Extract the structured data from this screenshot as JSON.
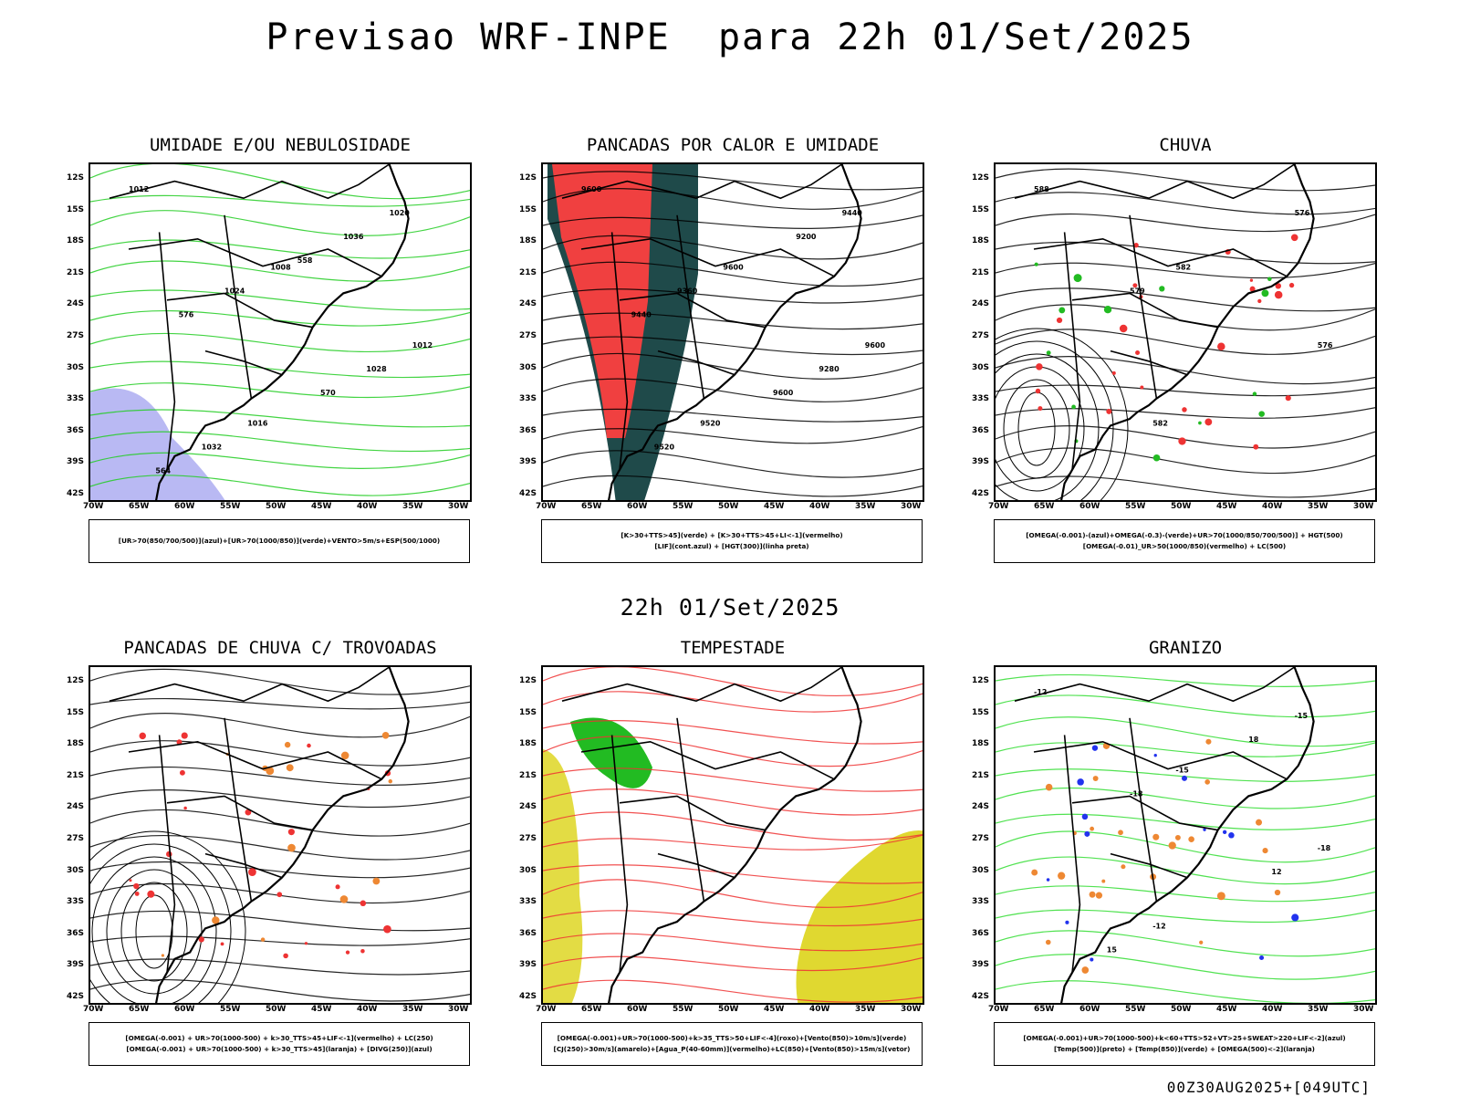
{
  "main_title": "Previsao WRF-INPE  para 22h 01/Set/2025",
  "mid_date": "22h 01/Set/2025",
  "footer": "00Z30AUG2025+[049UTC]",
  "axes": {
    "lat_labels": [
      "12S",
      "15S",
      "18S",
      "21S",
      "24S",
      "27S",
      "30S",
      "33S",
      "36S",
      "39S",
      "42S"
    ],
    "lon_labels": [
      "70W",
      "65W",
      "60W",
      "55W",
      "50W",
      "45W",
      "40W",
      "35W",
      "30W"
    ]
  },
  "panels": [
    {
      "title": "UMIDADE E/OU NEBULOSIDADE",
      "legend": [
        "[UR>70(850/700/500)](azul)+[UR>70(1000/850)](verde)+VENTO>5m/s+ESP(500/1000)"
      ],
      "contour_labels": [
        "1012",
        "1008",
        "1012",
        "1016",
        "1020",
        "1024",
        "1028",
        "1032",
        "1036",
        "576",
        "570",
        "564",
        "558"
      ],
      "colors": {
        "fill1": "#a8a8f0",
        "line1": "#22cc22",
        "line2": "#ee3333"
      }
    },
    {
      "title": "PANCADAS POR CALOR E UMIDADE",
      "legend": [
        "[K>30+TTS>45](verde) + [K>30+TTS>45+LI<-1](vermelho)",
        "[LIF](cont.azul) + [HGT(300)](linha preta)"
      ],
      "contour_labels": [
        "9600",
        "9600",
        "9600",
        "9520",
        "9440",
        "9360",
        "9280",
        "9520",
        "9200",
        "9440",
        "9600"
      ],
      "colors": {
        "fill1": "#1f4a4a",
        "fill2": "#f04040",
        "line1": "#2233ee"
      }
    },
    {
      "title": "CHUVA",
      "legend": [
        "[OMEGA(-0.001)-(azul)+OMEGA(-0.3)-(verde)+UR>70(1000/850/700/500)] + HGT(500)",
        "[OMEGA(-0.01)_UR>50(1000/850)(vermelho) + LC(500)"
      ],
      "contour_labels": [
        "588",
        "582",
        "576",
        "582",
        "576",
        "579"
      ],
      "colors": {
        "fill1": "#ee3333",
        "fill2": "#22bb22",
        "line1": "#2233ee"
      }
    },
    {
      "title": "PANCADAS DE CHUVA C/ TROVOADAS",
      "legend": [
        "[OMEGA(-0.001) + UR>70(1000-500) + k>30_TTS>45+LIF<-1](vermelho) + LC(250)",
        "[OMEGA(-0.001) + UR>70(1000-500) + k>30_TTS>45](laranja) + [DIVG(250)](azul)"
      ],
      "contour_labels": [],
      "colors": {
        "fill1": "#ee3333",
        "fill2": "#ee8833",
        "line1": "#2233ee"
      }
    },
    {
      "title": "TEMPESTADE",
      "legend": [
        "[OMEGA(-0.001)+UR>70(1000-500)+k>35_TTS>50+LIF<-4](roxo)+[Vento(850)>10m/s](verde)",
        "[CJ(250)>30m/s](amarelo)+[Agua_P(40-60mm)](vermelho)+LC(850)+[Vento(850)>15m/s](vetor)"
      ],
      "contour_labels": [],
      "colors": {
        "fill1": "#e0d830",
        "fill2": "#22bb22",
        "line1": "#ee3333"
      }
    },
    {
      "title": "GRANIZO",
      "legend": [
        "[OMEGA(-0.001)+UR>70(1000-500)+k<60+TTS>52+VT>25+SWEAT>220+LIF<-2](azul)",
        "[Temp(500)](preto) + [Temp(850)](verde) + [OMEGA(500)<-2](laranja)"
      ],
      "contour_labels": [
        "-12",
        "-15",
        "-18",
        "-12",
        "-15",
        "-18",
        "12",
        "15",
        "18"
      ],
      "colors": {
        "line1": "#33dd33",
        "fill1": "#ee8833",
        "fill2": "#2233ee"
      }
    }
  ]
}
